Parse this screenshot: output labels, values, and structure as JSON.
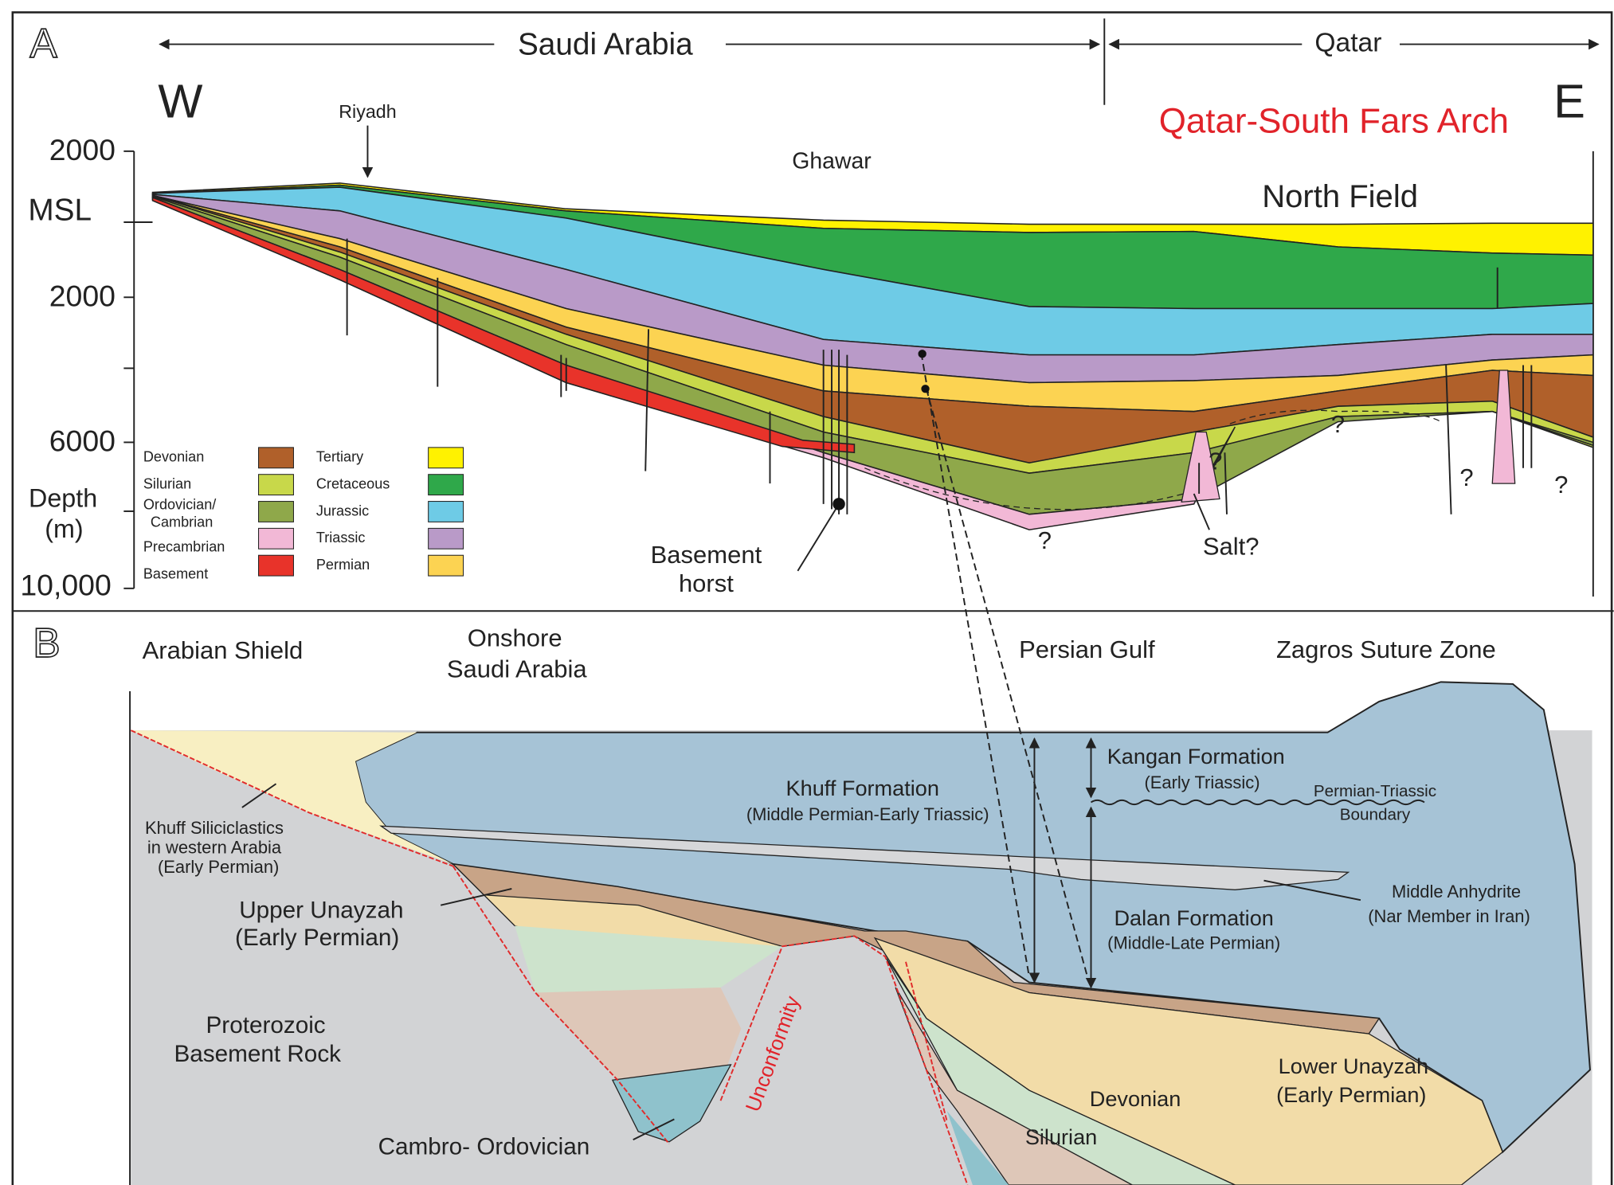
{
  "panel_a": {
    "label": "A",
    "countries": [
      "Saudi Arabia",
      "Qatar"
    ],
    "west": "W",
    "east": "E",
    "title": "Qatar-South Fars Arch",
    "places": [
      "Riyadh",
      "Ghawar",
      "North Field"
    ],
    "depth_ticks": [
      "2000",
      "MSL",
      "2000",
      "6000",
      "10,000"
    ],
    "depth_title": [
      "Depth",
      "(m)"
    ],
    "legend": [
      {
        "label": "Devonian",
        "color": "#b0602a"
      },
      {
        "label": "Silurian",
        "color": "#c8d84a"
      },
      {
        "label": [
          "Ordovician/",
          "Cambrian"
        ],
        "color": "#8fa84a"
      },
      {
        "label": "Precambrian",
        "color": "#f2b8d6"
      },
      {
        "label": "Basement",
        "color": "#e8332a"
      },
      {
        "label": "Tertiary",
        "color": "#fff200"
      },
      {
        "label": "Cretaceous",
        "color": "#2fa84a"
      },
      {
        "label": "Jurassic",
        "color": "#6ecbe6"
      },
      {
        "label": "Triassic",
        "color": "#b99ac8"
      },
      {
        "label": "Permian",
        "color": "#fcd352"
      }
    ],
    "horst": [
      "Basement",
      "horst"
    ],
    "salt": "Salt?",
    "question_marks": [
      "?",
      "?",
      "?",
      "?",
      "?"
    ]
  },
  "panel_b": {
    "label": "B",
    "regions": {
      "shield": "Arabian Shield",
      "onshore": [
        "Onshore",
        "Saudi Arabia"
      ],
      "gulf": "Persian Gulf",
      "zagros": "Zagros Suture Zone"
    },
    "units": {
      "khuff_siliciclastics": [
        "Khuff Siliciclastics",
        "in western Arabia",
        "(Early Permian)"
      ],
      "upper_unayzah": [
        "Upper Unayzah",
        "(Early Permian)"
      ],
      "basement": [
        "Proterozoic",
        "Basement Rock"
      ],
      "cambro_ordovician": "Cambro- Ordovician",
      "unconformity": "Unconformity",
      "khuff": [
        "Khuff Formation",
        "(Middle Permian-Early Triassic)"
      ],
      "kangan": [
        "Kangan Formation",
        "(Early Triassic)"
      ],
      "boundary": [
        "Permian-Triassic",
        "Boundary"
      ],
      "dalan": [
        "Dalan Formation",
        "(Middle-Late Permian)"
      ],
      "anhydrite": [
        "Middle Anhydrite",
        "(Nar Member in Iran)"
      ],
      "lower_unayzah": [
        "Lower Unayzah",
        "(Early Permian)"
      ],
      "devonian": "Devonian",
      "silurian": "Silurian"
    }
  }
}
